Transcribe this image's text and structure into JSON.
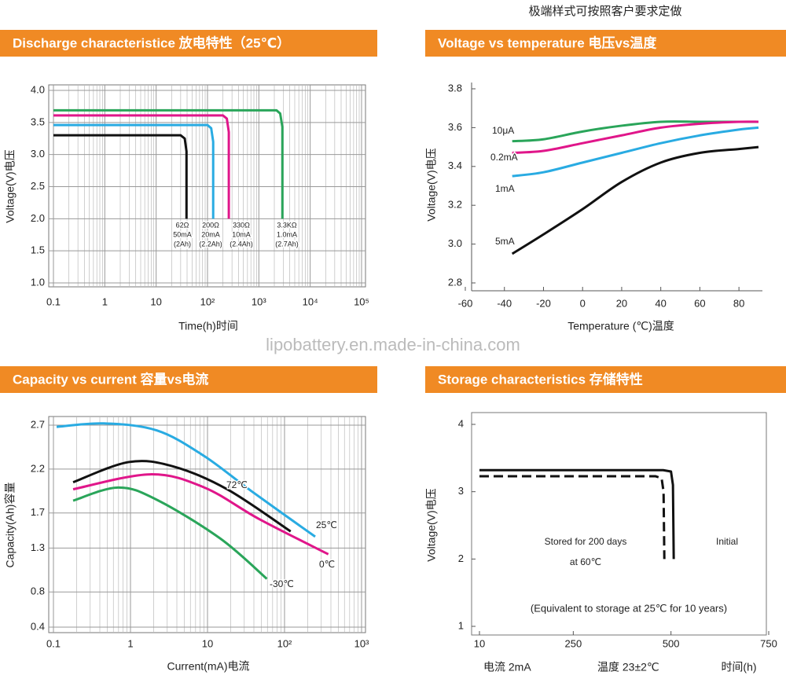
{
  "header_note": "极端样式可按照客户要求定做",
  "watermark": "lipobattery.en.made-in-china.com",
  "chart_data": [
    {
      "type": "line",
      "title": "Discharge characteristice 放电特性（25℃）",
      "x_label": "Time(h)时间",
      "y_label": "Voltage(V)电压",
      "xscale": "log",
      "xlim": [
        0.1,
        100000
      ],
      "xticks": [
        0.1,
        1,
        10,
        {
          "value": 100,
          "label": "10²"
        },
        {
          "value": 1000,
          "label": "10³"
        },
        {
          "value": 10000,
          "label": "10⁴"
        },
        {
          "value": 100000,
          "label": "10⁵"
        }
      ],
      "ylim": [
        1,
        4
      ],
      "yticks": [
        {
          "value": 1,
          "label": "1.0"
        },
        1.5,
        {
          "value": 2,
          "label": "2.0"
        },
        2.5,
        {
          "value": 3,
          "label": "3.0"
        },
        3.5,
        {
          "value": 4,
          "label": "4.0"
        }
      ],
      "grid": true,
      "minor_grid": true,
      "series": [
        {
          "name": "62Ω",
          "details": [
            "50mA",
            "(2Ah)"
          ],
          "color": "#111111",
          "x": [
            0.1,
            30,
            36,
            39,
            39
          ],
          "values": [
            3.3,
            3.3,
            3.25,
            3.05,
            2.0
          ]
        },
        {
          "name": "200Ω",
          "details": [
            "20mA",
            "(2.2Ah)"
          ],
          "color": "#29abe2",
          "x": [
            0.1,
            100,
            118,
            129,
            129
          ],
          "values": [
            3.46,
            3.46,
            3.41,
            3.2,
            2.0
          ]
        },
        {
          "name": "330Ω",
          "details": [
            "10mA",
            "(2.4Ah)"
          ],
          "color": "#e0168a",
          "x": [
            0.1,
            200,
            238,
            260,
            260
          ],
          "values": [
            3.61,
            3.61,
            3.56,
            3.35,
            2.0
          ]
        },
        {
          "name": "3.3KΩ",
          "details": [
            "1.0mA",
            "(2.7Ah)"
          ],
          "color": "#2aa55a",
          "x": [
            0.1,
            2200,
            2600,
            2870,
            2870
          ],
          "values": [
            3.69,
            3.69,
            3.64,
            3.43,
            2.0
          ]
        }
      ]
    },
    {
      "type": "line",
      "title": "Voltage vs temperature 电压vs温度",
      "x_label": "Temperature (℃)温度",
      "y_label": "Voltage(V)电压",
      "xlim": [
        -60,
        90
      ],
      "xticks": [
        -60,
        -40,
        -20,
        0,
        20,
        40,
        60,
        80
      ],
      "ylim": [
        2.8,
        3.8
      ],
      "yticks": [
        2.8,
        {
          "value": 3,
          "label": "3.0"
        },
        3.2,
        3.4,
        3.6,
        3.8
      ],
      "grid": false,
      "x": [
        -36,
        -20,
        0,
        20,
        40,
        60,
        80,
        90
      ],
      "series": [
        {
          "name": "10μA",
          "color": "#2aa55a",
          "values": [
            3.53,
            3.54,
            3.58,
            3.61,
            3.63,
            3.63,
            3.63,
            3.63
          ]
        },
        {
          "name": "0.2mA",
          "color": "#e0168a",
          "values": [
            3.47,
            3.48,
            3.52,
            3.56,
            3.6,
            3.62,
            3.63,
            3.63
          ]
        },
        {
          "name": "1mA",
          "color": "#29abe2",
          "values": [
            3.35,
            3.37,
            3.42,
            3.47,
            3.52,
            3.56,
            3.59,
            3.6
          ]
        },
        {
          "name": "5mA",
          "color": "#111111",
          "values": [
            2.95,
            3.05,
            3.18,
            3.32,
            3.42,
            3.47,
            3.49,
            3.5
          ]
        }
      ]
    },
    {
      "type": "line",
      "title": "Capacity vs current 容量vs电流",
      "x_label": "Current(mA)电流",
      "y_label": "Capacity(Ah)容量",
      "xscale": "log",
      "xlim": [
        0.1,
        1000
      ],
      "xticks": [
        0.1,
        1,
        10,
        {
          "value": 100,
          "label": "10²"
        },
        {
          "value": 1000,
          "label": "10³"
        }
      ],
      "ylim": [
        0.4,
        2.7
      ],
      "yticks": [
        0.4,
        0.8,
        1.3,
        1.7,
        2.2,
        2.7
      ],
      "grid": true,
      "minor_grid": true,
      "series": [
        {
          "name": "25℃",
          "color": "#29abe2",
          "x": [
            0.11,
            0.45,
            2.2,
            9,
            37,
            250
          ],
          "values": [
            2.68,
            2.72,
            2.64,
            2.35,
            1.95,
            1.43
          ]
        },
        {
          "name": "72℃",
          "color": "#111111",
          "x": [
            0.18,
            0.95,
            3.6,
            18,
            120
          ],
          "values": [
            2.05,
            2.28,
            2.23,
            1.97,
            1.49
          ]
        },
        {
          "name": "0℃",
          "color": "#e0168a",
          "x": [
            0.18,
            1.8,
            9.1,
            47,
            370
          ],
          "values": [
            1.97,
            2.14,
            1.99,
            1.63,
            1.23
          ]
        },
        {
          "name": "-30℃",
          "color": "#2aa55a",
          "x": [
            0.18,
            0.69,
            2.2,
            14.6,
            59
          ],
          "values": [
            1.84,
            1.99,
            1.85,
            1.41,
            0.95
          ]
        }
      ]
    },
    {
      "type": "line",
      "title": "Storage characteristics 存储特性",
      "x_label": "时间(h)",
      "y_label": "Voltage(V)电压",
      "xlim": [
        10,
        750
      ],
      "xticks": [
        10,
        250,
        500,
        750
      ],
      "ylim": [
        1,
        4
      ],
      "yticks": [
        1,
        2,
        3,
        4
      ],
      "grid": false,
      "annotation": "(Equivalent to storage at 25℃ for 10 years)",
      "notes": [
        "电流  2mA",
        "温度  23±2℃"
      ],
      "series": [
        {
          "name": "Initial",
          "color": "#111111",
          "x": [
            10,
            480,
            500,
            505,
            507
          ],
          "values": [
            3.32,
            3.32,
            3.3,
            3.1,
            2.0
          ]
        },
        {
          "name": "Stored for 200 days",
          "details": [
            "at 60℃"
          ],
          "color": "#111111",
          "dash": true,
          "x": [
            10,
            460,
            476,
            481,
            483
          ],
          "values": [
            3.23,
            3.23,
            3.2,
            3.0,
            2.0
          ]
        }
      ]
    }
  ]
}
